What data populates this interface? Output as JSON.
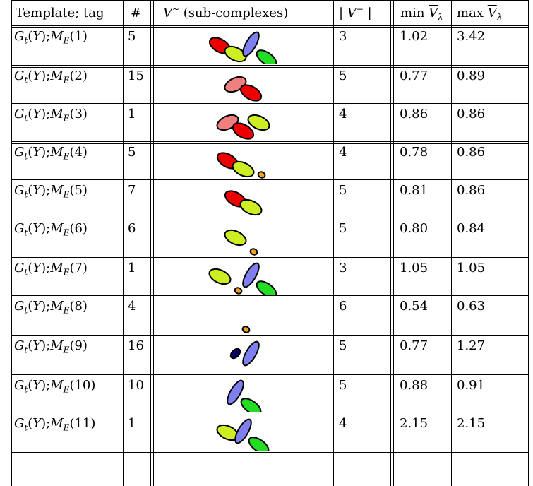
{
  "header": {
    "template": "Template; tag",
    "count": "#",
    "subcomplexes": "(sub-complexes)",
    "vminus": "V",
    "min": "min",
    "max": "max"
  },
  "rows": [
    {
      "tag": "1",
      "count": "5",
      "vminus": "3",
      "min": "1.02",
      "max": "3.42",
      "shapes": [
        "red",
        "yellow",
        "periwinkle",
        "green"
      ]
    },
    {
      "tag": "2",
      "count": "15",
      "vminus": "5",
      "min": "0.77",
      "max": "0.89",
      "shapes": [
        "salmon",
        "red"
      ]
    },
    {
      "tag": "3",
      "count": "1",
      "vminus": "4",
      "min": "0.86",
      "max": "0.86",
      "shapes": [
        "salmon",
        "red",
        "yellow"
      ]
    },
    {
      "tag": "4",
      "count": "5",
      "vminus": "4",
      "min": "0.78",
      "max": "0.86",
      "shapes": [
        "red",
        "yellow",
        "orange"
      ]
    },
    {
      "tag": "5",
      "count": "7",
      "vminus": "5",
      "min": "0.81",
      "max": "0.86",
      "shapes": [
        "red",
        "yellow"
      ]
    },
    {
      "tag": "6",
      "count": "6",
      "vminus": "5",
      "min": "0.80",
      "max": "0.84",
      "shapes": [
        "yellow",
        "orange"
      ]
    },
    {
      "tag": "7",
      "count": "1",
      "vminus": "3",
      "min": "1.05",
      "max": "1.05",
      "shapes": [
        "yellow",
        "orange",
        "periwinkle",
        "green"
      ]
    },
    {
      "tag": "8",
      "count": "4",
      "vminus": "6",
      "min": "0.54",
      "max": "0.63",
      "shapes": [
        "orange"
      ]
    },
    {
      "tag": "9",
      "count": "16",
      "vminus": "5",
      "min": "0.77",
      "max": "1.27",
      "shapes": [
        "navy",
        "periwinkle"
      ]
    },
    {
      "tag": "10",
      "count": "10",
      "vminus": "5",
      "min": "0.88",
      "max": "0.91",
      "shapes": [
        "periwinkle",
        "green"
      ]
    },
    {
      "tag": "11",
      "count": "1",
      "vminus": "4",
      "min": "2.15",
      "max": "2.15",
      "shapes": [
        "yellow",
        "periwinkle",
        "green"
      ]
    }
  ],
  "colors": {
    "red": "#ee0000",
    "salmon": "#f08080",
    "yellow": "#ccee22",
    "orange": "#f0a020",
    "periwinkle": "#7f7fef",
    "green": "#22dd22",
    "navy": "#000066"
  }
}
